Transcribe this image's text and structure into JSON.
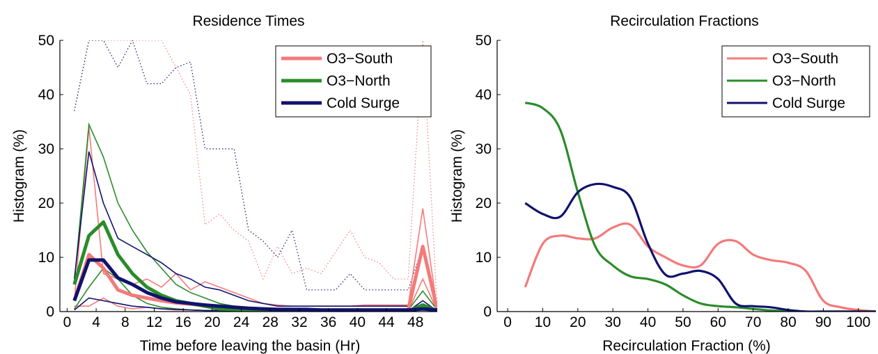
{
  "chart_data": [
    {
      "type": "line",
      "title": "Residence Times",
      "xlabel": "Time before leaving the basin (Hr)",
      "ylabel": "Histogram (%)",
      "xlim": [
        -1,
        51
      ],
      "ylim": [
        0,
        50
      ],
      "xticks": [
        0,
        4,
        8,
        12,
        16,
        20,
        24,
        28,
        32,
        36,
        40,
        44,
        48
      ],
      "yticks": [
        0,
        10,
        20,
        30,
        40,
        50
      ],
      "grid": false,
      "legend_position": "top-right",
      "x": [
        1,
        3,
        5,
        7,
        9,
        11,
        13,
        15,
        17,
        19,
        21,
        23,
        25,
        27,
        29,
        31,
        33,
        35,
        37,
        39,
        41,
        43,
        45,
        47,
        49,
        51
      ],
      "series": [
        {
          "name": "O3−South",
          "color": "#f47a7a",
          "mean": [
            2,
            10.5,
            8,
            4,
            3,
            2.5,
            2,
            1.6,
            1.4,
            1.1,
            0.9,
            0.8,
            0.6,
            0.5,
            0.4,
            0.4,
            0.3,
            0.3,
            0.3,
            0.3,
            0.3,
            0.3,
            0.3,
            0.3,
            12,
            0.3
          ],
          "upper": [
            2,
            34,
            7,
            6,
            5,
            6,
            4.5,
            7,
            4,
            5.5,
            4.5,
            3.5,
            2.5,
            1.5,
            1.2,
            1,
            1,
            1,
            1,
            1,
            1.2,
            1.2,
            1.2,
            1.2,
            19,
            0.4
          ],
          "lower": [
            1,
            1,
            2.5,
            1,
            0.5,
            0.8,
            0.5,
            0.3,
            0.3,
            0.2,
            0.2,
            0.2,
            0.1,
            0.1,
            0.1,
            0.1,
            0.1,
            0.1,
            0.1,
            0.1,
            0.1,
            0.1,
            0.1,
            0.1,
            6,
            0.1
          ],
          "dotted_upper": [
            37,
            50,
            50,
            50,
            50,
            50,
            50,
            45,
            40,
            16,
            18,
            15,
            13,
            6,
            12,
            7,
            8,
            7,
            11,
            15,
            10,
            9,
            6,
            6,
            50,
            0.5
          ]
        },
        {
          "name": "O3−North",
          "color": "#2a8c2a",
          "mean": [
            5,
            14,
            16.5,
            10.5,
            7,
            4.5,
            3,
            2,
            1.5,
            1,
            0.5,
            0.4,
            0.3,
            0.2,
            0.2,
            0.2,
            0.2,
            0.1,
            0.1,
            0.1,
            0.1,
            0.1,
            0.1,
            0.1,
            1.2,
            0.1
          ],
          "upper": [
            5.5,
            34.5,
            28.5,
            20,
            15,
            11,
            8,
            5,
            3.5,
            2.5,
            1.5,
            1,
            0.8,
            0.5,
            0.5,
            0.4,
            0.4,
            0.3,
            0.3,
            0.3,
            0.3,
            0.3,
            0.3,
            0.3,
            3.8,
            0.3
          ],
          "lower": [
            0.5,
            4.5,
            8,
            6,
            3,
            1.5,
            0.8,
            0.5,
            0.3,
            0.2,
            0.1,
            0.1,
            0.1,
            0.1,
            0.1,
            0.1,
            0.1,
            0.1,
            0.1,
            0.1,
            0.1,
            0.1,
            0.1,
            0.1,
            0.3,
            0.1
          ],
          "dotted_upper": []
        },
        {
          "name": "Cold Surge",
          "color": "#10126e",
          "mean": [
            2,
            9.5,
            9.5,
            6.2,
            5,
            3.5,
            2.5,
            1.8,
            1.5,
            1.2,
            1,
            0.8,
            0.6,
            0.5,
            0.4,
            0.4,
            0.4,
            0.3,
            0.3,
            0.3,
            0.3,
            0.3,
            0.3,
            0.3,
            0.5,
            0.3
          ],
          "upper": [
            6,
            29.5,
            20,
            13.5,
            12,
            10.5,
            9,
            7,
            6,
            4.5,
            4,
            3,
            2,
            1.5,
            1,
            1,
            1,
            1,
            1,
            1,
            1,
            1,
            1,
            1,
            12,
            0.3
          ],
          "lower": [
            0.3,
            2.5,
            2,
            1.5,
            1,
            0.8,
            0.5,
            0.4,
            0.3,
            0.2,
            0.2,
            0.1,
            0.1,
            0.1,
            0.1,
            0.1,
            0.1,
            0.1,
            0.1,
            0.1,
            0.1,
            0.1,
            0.1,
            0.1,
            2,
            0.1
          ],
          "dotted_upper": [
            37,
            50,
            50,
            45,
            50,
            42,
            42,
            45,
            46,
            30,
            30,
            30,
            15,
            13,
            10,
            15,
            4,
            4,
            4,
            7,
            4,
            4,
            4,
            4,
            12,
            0.5
          ]
        }
      ]
    },
    {
      "type": "line",
      "title": "Recirculation Fractions",
      "xlabel": "Recirculation Fraction (%)",
      "ylabel": "Histogram (%)",
      "xlim": [
        -3,
        105
      ],
      "ylim": [
        0,
        50
      ],
      "xticks": [
        0,
        10,
        20,
        30,
        40,
        50,
        60,
        70,
        80,
        90,
        100
      ],
      "yticks": [
        0,
        10,
        20,
        30,
        40,
        50
      ],
      "grid": false,
      "legend_position": "top-right",
      "x": [
        5,
        10,
        15,
        20,
        25,
        30,
        35,
        40,
        45,
        50,
        55,
        60,
        65,
        70,
        75,
        80,
        85,
        90,
        95,
        100,
        105
      ],
      "series": [
        {
          "name": "O3−South",
          "color": "#f47a7a",
          "values": [
            4.5,
            12.5,
            14,
            13.5,
            13.5,
            15.5,
            16,
            12,
            10,
            8.5,
            8.5,
            12.5,
            13,
            10.5,
            9.5,
            9,
            7.5,
            2,
            0.8,
            0.3,
            0
          ]
        },
        {
          "name": "O3−North",
          "color": "#2a8c2a",
          "values": [
            38.5,
            37.5,
            33.5,
            22,
            12,
            8.5,
            6.5,
            6,
            5,
            3,
            1.5,
            1,
            0.8,
            0.5,
            0.2,
            0.1,
            0,
            0,
            0,
            0,
            0
          ]
        },
        {
          "name": "Cold Surge",
          "color": "#10126e",
          "values": [
            20,
            18,
            17.5,
            22,
            23.5,
            23,
            21,
            12.5,
            6.8,
            7,
            7.5,
            6,
            1.5,
            1,
            0.8,
            0.3,
            0,
            0,
            0,
            0,
            0
          ]
        }
      ]
    }
  ]
}
